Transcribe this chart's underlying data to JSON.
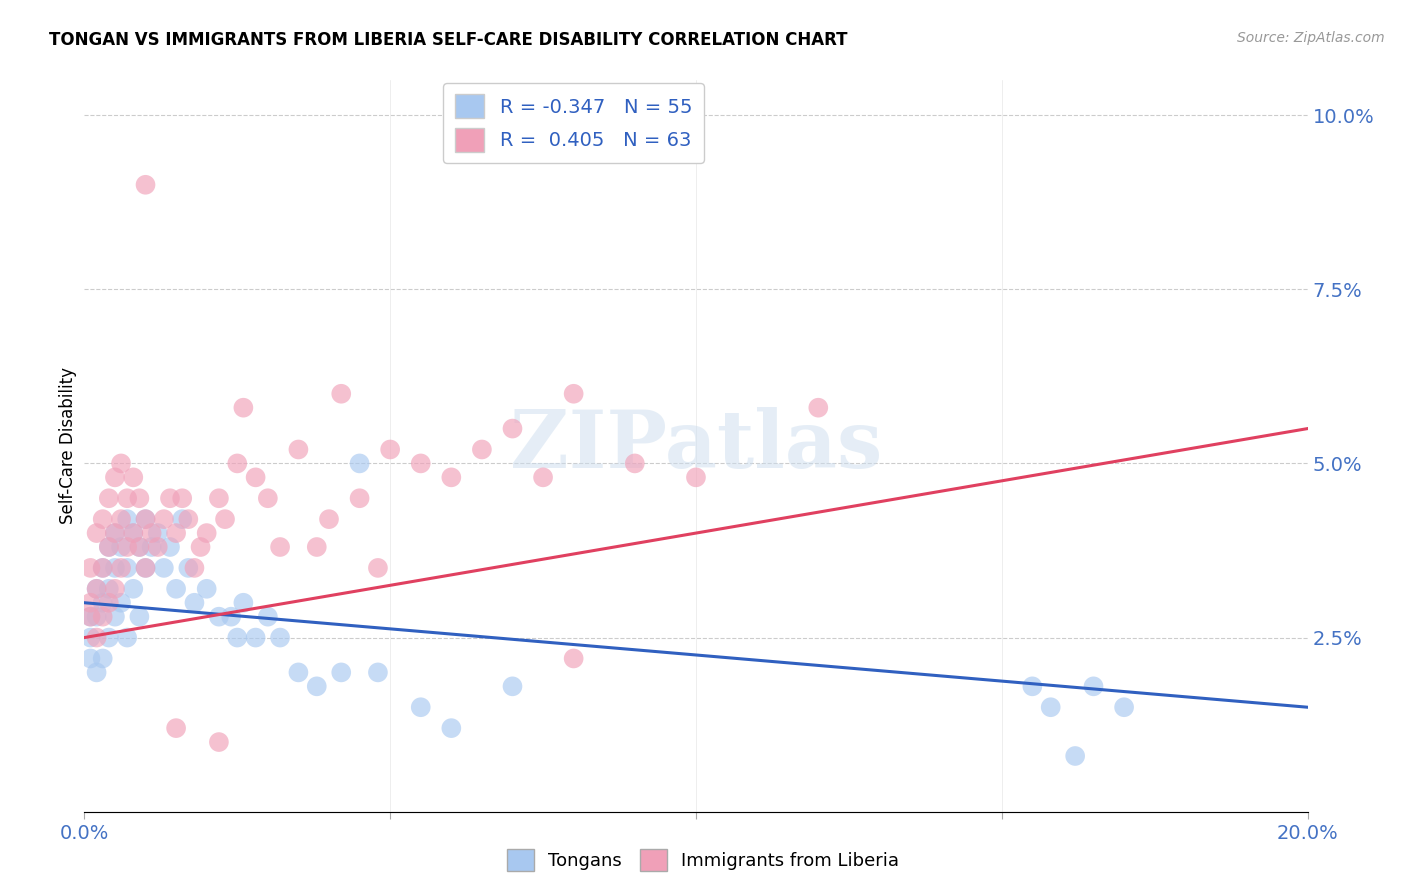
{
  "title": "TONGAN VS IMMIGRANTS FROM LIBERIA SELF-CARE DISABILITY CORRELATION CHART",
  "source": "Source: ZipAtlas.com",
  "ylabel": "Self-Care Disability",
  "xlim": [
    0.0,
    0.2
  ],
  "ylim": [
    0.0,
    0.105
  ],
  "r_tongan": -0.347,
  "n_tongan": 55,
  "r_liberia": 0.405,
  "n_liberia": 63,
  "color_tongan": "#A8C8F0",
  "color_liberia": "#F0A0B8",
  "line_color_tongan": "#3060C0",
  "line_color_liberia": "#E04060",
  "background_color": "#FFFFFF",
  "watermark": "ZIPatlas",
  "tongan_x": [
    0.001,
    0.001,
    0.001,
    0.002,
    0.002,
    0.002,
    0.003,
    0.003,
    0.003,
    0.004,
    0.004,
    0.004,
    0.005,
    0.005,
    0.005,
    0.006,
    0.006,
    0.007,
    0.007,
    0.007,
    0.008,
    0.008,
    0.009,
    0.009,
    0.01,
    0.01,
    0.011,
    0.012,
    0.013,
    0.014,
    0.015,
    0.016,
    0.017,
    0.018,
    0.02,
    0.022,
    0.024,
    0.025,
    0.026,
    0.028,
    0.03,
    0.032,
    0.035,
    0.038,
    0.042,
    0.045,
    0.048,
    0.055,
    0.06,
    0.07,
    0.155,
    0.158,
    0.162,
    0.165,
    0.17
  ],
  "tongan_y": [
    0.028,
    0.025,
    0.022,
    0.032,
    0.028,
    0.02,
    0.035,
    0.03,
    0.022,
    0.038,
    0.032,
    0.025,
    0.04,
    0.035,
    0.028,
    0.038,
    0.03,
    0.042,
    0.035,
    0.025,
    0.04,
    0.032,
    0.038,
    0.028,
    0.042,
    0.035,
    0.038,
    0.04,
    0.035,
    0.038,
    0.032,
    0.042,
    0.035,
    0.03,
    0.032,
    0.028,
    0.028,
    0.025,
    0.03,
    0.025,
    0.028,
    0.025,
    0.02,
    0.018,
    0.02,
    0.05,
    0.02,
    0.015,
    0.012,
    0.018,
    0.018,
    0.015,
    0.008,
    0.018,
    0.015
  ],
  "liberia_x": [
    0.001,
    0.001,
    0.001,
    0.002,
    0.002,
    0.002,
    0.003,
    0.003,
    0.003,
    0.004,
    0.004,
    0.004,
    0.005,
    0.005,
    0.005,
    0.006,
    0.006,
    0.006,
    0.007,
    0.007,
    0.008,
    0.008,
    0.009,
    0.009,
    0.01,
    0.01,
    0.011,
    0.012,
    0.013,
    0.014,
    0.015,
    0.016,
    0.017,
    0.018,
    0.019,
    0.02,
    0.022,
    0.023,
    0.025,
    0.026,
    0.028,
    0.03,
    0.032,
    0.035,
    0.038,
    0.04,
    0.042,
    0.045,
    0.048,
    0.05,
    0.055,
    0.06,
    0.065,
    0.07,
    0.075,
    0.08,
    0.09,
    0.1,
    0.12,
    0.01,
    0.08,
    0.015,
    0.022
  ],
  "liberia_y": [
    0.028,
    0.035,
    0.03,
    0.04,
    0.032,
    0.025,
    0.042,
    0.035,
    0.028,
    0.045,
    0.038,
    0.03,
    0.048,
    0.04,
    0.032,
    0.05,
    0.042,
    0.035,
    0.045,
    0.038,
    0.048,
    0.04,
    0.045,
    0.038,
    0.042,
    0.035,
    0.04,
    0.038,
    0.042,
    0.045,
    0.04,
    0.045,
    0.042,
    0.035,
    0.038,
    0.04,
    0.045,
    0.042,
    0.05,
    0.058,
    0.048,
    0.045,
    0.038,
    0.052,
    0.038,
    0.042,
    0.06,
    0.045,
    0.035,
    0.052,
    0.05,
    0.048,
    0.052,
    0.055,
    0.048,
    0.06,
    0.05,
    0.048,
    0.058,
    0.09,
    0.022,
    0.012,
    0.01
  ]
}
